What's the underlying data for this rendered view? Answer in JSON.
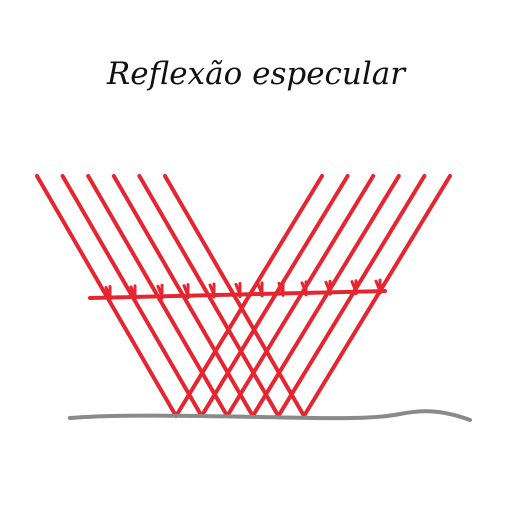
{
  "diagram": {
    "title": "Reflexão especular",
    "ray_count": 6,
    "colors": {
      "ray": "#e52530",
      "surface": "#8a8a8a",
      "text": "#111111",
      "background": "#ffffff"
    }
  }
}
